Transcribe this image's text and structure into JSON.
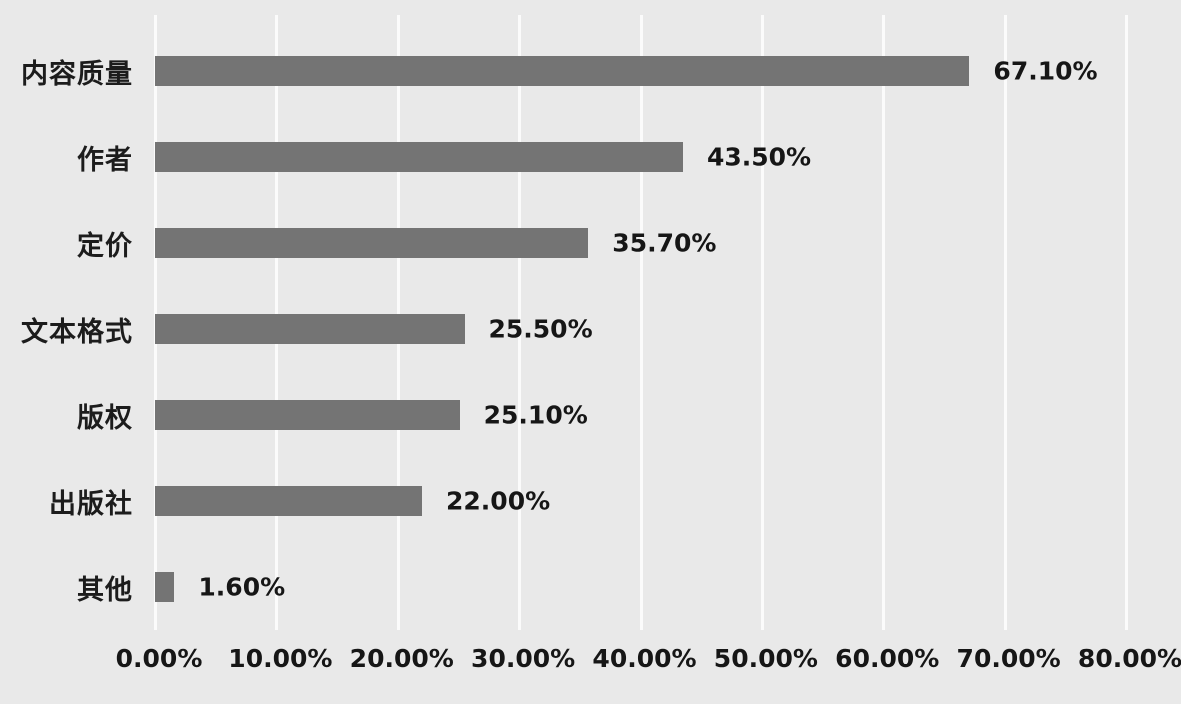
{
  "chart_data": {
    "type": "bar",
    "orientation": "horizontal",
    "title": "",
    "xlabel": "",
    "ylabel": "",
    "categories": [
      "内容质量",
      "作者",
      "定价",
      "文本格式",
      "版权",
      "出版社",
      "其他"
    ],
    "values": [
      67.1,
      43.5,
      35.7,
      25.5,
      25.1,
      22.0,
      1.6
    ],
    "value_labels": [
      "67.10%",
      "43.50%",
      "35.70%",
      "25.50%",
      "25.10%",
      "22.00%",
      "1.60%"
    ],
    "x_ticks": [
      {
        "value": 0,
        "label": "0.00%"
      },
      {
        "value": 10,
        "label": "10.00%"
      },
      {
        "value": 20,
        "label": "20.00%"
      },
      {
        "value": 30,
        "label": "30.00%"
      },
      {
        "value": 40,
        "label": "40.00%"
      },
      {
        "value": 50,
        "label": "50.00%"
      },
      {
        "value": 60,
        "label": "60.00%"
      },
      {
        "value": 70,
        "label": "70.00%"
      },
      {
        "value": 80,
        "label": "80.00%"
      }
    ],
    "xlim": [
      0,
      80
    ],
    "grid": true,
    "legend": false,
    "colors": {
      "background": "#e9e9e9",
      "bar": "#747474",
      "gridline": "#fbfbfb",
      "text": "#1c1c1c"
    }
  }
}
